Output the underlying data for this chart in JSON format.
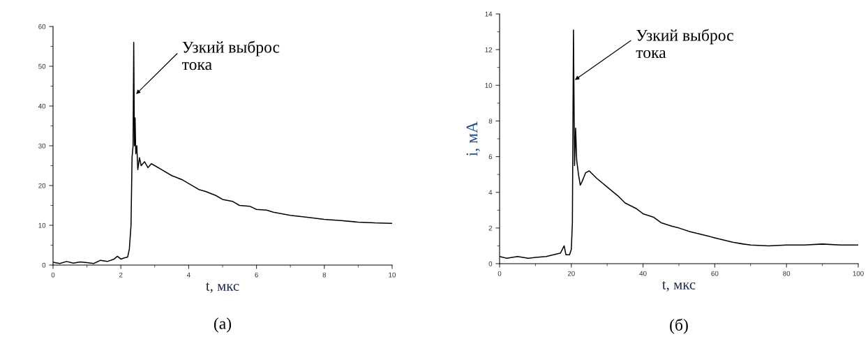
{
  "chart_data": [
    {
      "type": "line",
      "xlabel": "t, мкс",
      "xlim": [
        0,
        10
      ],
      "ylim": [
        0,
        60
      ],
      "xticks": [
        0,
        2,
        4,
        6,
        8,
        10
      ],
      "yticks": [
        0,
        10,
        20,
        30,
        40,
        50,
        60
      ],
      "grid": false,
      "legend": false,
      "series": [
        {
          "color": "#000000",
          "x": [
            0,
            0.2,
            0.4,
            0.6,
            0.8,
            1.0,
            1.2,
            1.4,
            1.6,
            1.8,
            1.9,
            2.0,
            2.1,
            2.2,
            2.25,
            2.3,
            2.33,
            2.36,
            2.38,
            2.4,
            2.42,
            2.44,
            2.47,
            2.5,
            2.55,
            2.6,
            2.7,
            2.8,
            2.9,
            3.0,
            3.2,
            3.5,
            3.8,
            4.0,
            4.3,
            4.5,
            4.8,
            5.0,
            5.3,
            5.5,
            5.8,
            6.0,
            6.3,
            6.5,
            7.0,
            7.5,
            8.0,
            8.5,
            9.0,
            9.5,
            10.0
          ],
          "values": [
            0.7,
            0.4,
            0.9,
            0.5,
            0.8,
            0.6,
            0.4,
            1.2,
            0.9,
            1.5,
            2.2,
            1.5,
            1.8,
            2.0,
            4,
            10,
            27,
            30,
            56,
            30,
            37,
            28,
            30,
            24,
            27,
            25,
            26,
            24.5,
            25.5,
            25,
            24,
            22.5,
            21.5,
            20.5,
            19,
            18.5,
            17.5,
            16.5,
            16,
            15,
            14.8,
            14,
            13.8,
            13.3,
            12.5,
            12,
            11.5,
            11.2,
            10.8,
            10.6,
            10.5
          ]
        }
      ],
      "annotations": [
        {
          "text": "Узкий выброс\nтока",
          "x": 2.45,
          "y": 43
        },
        "(а)"
      ]
    },
    {
      "type": "line",
      "xlabel": "t, мкс",
      "ylabel": "i, мА",
      "xlim": [
        0,
        100
      ],
      "ylim": [
        0,
        14
      ],
      "xticks": [
        0,
        20,
        40,
        60,
        80,
        100
      ],
      "yticks": [
        0,
        2,
        4,
        6,
        8,
        10,
        12,
        14
      ],
      "grid": false,
      "legend": false,
      "series": [
        {
          "color": "#000000",
          "x": [
            0,
            2,
            5,
            8,
            10,
            13,
            15,
            17,
            18,
            18.5,
            19.5,
            20,
            20.3,
            20.6,
            20.9,
            21.2,
            21.5,
            22,
            22.5,
            23,
            24,
            25,
            27,
            30,
            33,
            35,
            38,
            40,
            43,
            45,
            48,
            50,
            53,
            55,
            58,
            60,
            63,
            65,
            68,
            70,
            75,
            80,
            85,
            90,
            95,
            100
          ],
          "values": [
            0.4,
            0.3,
            0.4,
            0.3,
            0.35,
            0.4,
            0.5,
            0.6,
            1.0,
            0.5,
            0.5,
            0.8,
            2.3,
            13.1,
            5.5,
            7.6,
            5.8,
            5.0,
            4.4,
            4.6,
            5.1,
            5.2,
            4.8,
            4.3,
            3.8,
            3.4,
            3.1,
            2.8,
            2.6,
            2.3,
            2.1,
            2.0,
            1.8,
            1.7,
            1.55,
            1.45,
            1.3,
            1.2,
            1.1,
            1.05,
            1.0,
            1.05,
            1.05,
            1.1,
            1.05,
            1.05
          ]
        }
      ],
      "annotations": [
        {
          "text": "Узкий выброс\nтока",
          "x": 21,
          "y": 10.3
        },
        "(б)"
      ]
    }
  ]
}
